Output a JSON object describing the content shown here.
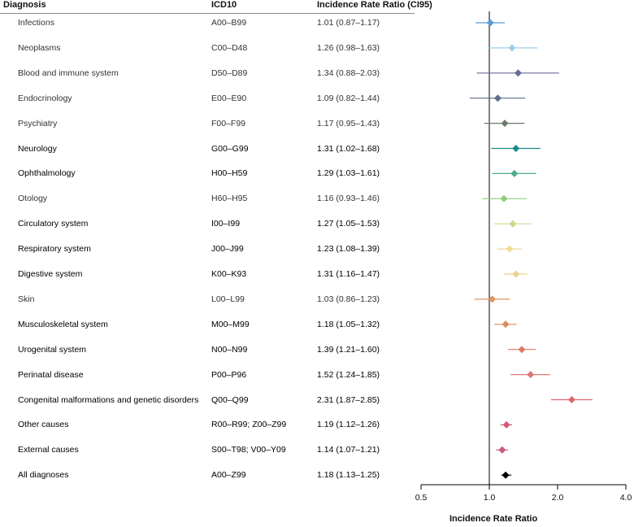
{
  "headers": {
    "diagnosis": "Diagnosis",
    "icd10": "ICD10",
    "irr": "Incidence Rate Ratio (CI95)"
  },
  "rows": [
    {
      "diagnosis": "Infections",
      "icd10": "A00–B99",
      "irr_text": "1.01 (0.87–1.17)",
      "significant": false
    },
    {
      "diagnosis": "Neoplasms",
      "icd10": "C00–D48",
      "irr_text": "1.26 (0.98–1.63)",
      "significant": false
    },
    {
      "diagnosis": "Blood and immune system",
      "icd10": "D50–D89",
      "irr_text": "1.34 (0.88–2.03)",
      "significant": false
    },
    {
      "diagnosis": "Endocrinology",
      "icd10": "E00–E90",
      "irr_text": "1.09 (0.82–1.44)",
      "significant": false
    },
    {
      "diagnosis": "Psychiatry",
      "icd10": "F00–F99",
      "irr_text": "1.17 (0.95–1.43)",
      "significant": false
    },
    {
      "diagnosis": "Neurology",
      "icd10": "G00–G99",
      "irr_text": "1.31 (1.02–1.68)",
      "significant": true
    },
    {
      "diagnosis": "Ophthalmology",
      "icd10": "H00–H59",
      "irr_text": "1.29 (1.03–1.61)",
      "significant": true
    },
    {
      "diagnosis": "Otology",
      "icd10": "H60–H95",
      "irr_text": "1.16 (0.93–1.46)",
      "significant": false
    },
    {
      "diagnosis": "Circulatory system",
      "icd10": "I00–I99",
      "irr_text": "1.27 (1.05–1.53)",
      "significant": true
    },
    {
      "diagnosis": "Respiratory system",
      "icd10": "J00–J99",
      "irr_text": "1.23 (1.08–1.39)",
      "significant": true
    },
    {
      "diagnosis": "Digestive system",
      "icd10": "K00–K93",
      "irr_text": "1.31 (1.16–1.47)",
      "significant": true
    },
    {
      "diagnosis": "Skin",
      "icd10": "L00–L99",
      "irr_text": "1.03 (0.86–1.23)",
      "significant": false
    },
    {
      "diagnosis": "Musculoskeletal system",
      "icd10": "M00–M99",
      "irr_text": "1.18 (1.05–1.32)",
      "significant": true
    },
    {
      "diagnosis": "Urogenital system",
      "icd10": "N00–N99",
      "irr_text": "1.39 (1.21–1.60)",
      "significant": true
    },
    {
      "diagnosis": "Perinatal disease",
      "icd10": "P00–P96",
      "irr_text": "1.52 (1.24–1.85)",
      "significant": true
    },
    {
      "diagnosis": "Congenital malformations and genetic disorders",
      "icd10": "Q00–Q99",
      "irr_text": "2.31 (1.87–2.85)",
      "significant": true
    },
    {
      "diagnosis": "Other causes",
      "icd10": "R00–R99;  Z00–Z99",
      "irr_text": "1.19 (1.12–1.26)",
      "significant": true
    },
    {
      "diagnosis": "External causes",
      "icd10": "S00–T98;  V00–Y09",
      "irr_text": "1.14 (1.07–1.21)",
      "significant": true
    },
    {
      "diagnosis": "All diagnoses",
      "icd10": "A00–Z99",
      "irr_text": "1.18 (1.13–1.25)",
      "significant": true
    }
  ],
  "chart_data": {
    "type": "forest",
    "xlabel": "Incidence Rate Ratio",
    "x_scale": "log",
    "xlim": [
      0.5,
      4.0
    ],
    "xticks": [
      0.5,
      1.0,
      2.0,
      4.0
    ],
    "xtick_labels": [
      "0.5",
      "1.0",
      "2.0",
      "4.0"
    ],
    "reference_line": 1.0,
    "points": [
      {
        "label": "Infections",
        "est": 1.01,
        "lo": 0.87,
        "hi": 1.17,
        "color": "#5b9bd5"
      },
      {
        "label": "Neoplasms",
        "est": 1.26,
        "lo": 0.98,
        "hi": 1.63,
        "color": "#9fcfe8"
      },
      {
        "label": "Blood and immune system",
        "est": 1.34,
        "lo": 0.88,
        "hi": 2.03,
        "color": "#6a6a9a"
      },
      {
        "label": "Endocrinology",
        "est": 1.09,
        "lo": 0.82,
        "hi": 1.44,
        "color": "#5e6e8a"
      },
      {
        "label": "Psychiatry",
        "est": 1.17,
        "lo": 0.95,
        "hi": 1.43,
        "color": "#6b7b6e"
      },
      {
        "label": "Neurology",
        "est": 1.31,
        "lo": 1.02,
        "hi": 1.68,
        "color": "#1f8a8a"
      },
      {
        "label": "Ophthalmology",
        "est": 1.29,
        "lo": 1.03,
        "hi": 1.61,
        "color": "#4aae8c"
      },
      {
        "label": "Otology",
        "est": 1.16,
        "lo": 0.93,
        "hi": 1.46,
        "color": "#8fcf7a"
      },
      {
        "label": "Circulatory system",
        "est": 1.27,
        "lo": 1.05,
        "hi": 1.53,
        "color": "#c8dc8c"
      },
      {
        "label": "Respiratory system",
        "est": 1.23,
        "lo": 1.08,
        "hi": 1.39,
        "color": "#ecdc96"
      },
      {
        "label": "Digestive system",
        "est": 1.31,
        "lo": 1.16,
        "hi": 1.47,
        "color": "#ecd28c"
      },
      {
        "label": "Skin",
        "est": 1.03,
        "lo": 0.86,
        "hi": 1.23,
        "color": "#dc9660"
      },
      {
        "label": "Musculoskeletal system",
        "est": 1.18,
        "lo": 1.05,
        "hi": 1.32,
        "color": "#dc8c5e"
      },
      {
        "label": "Urogenital system",
        "est": 1.39,
        "lo": 1.21,
        "hi": 1.6,
        "color": "#e07862"
      },
      {
        "label": "Perinatal disease",
        "est": 1.52,
        "lo": 1.24,
        "hi": 1.85,
        "color": "#e07878"
      },
      {
        "label": "Congenital malformations and genetic disorders",
        "est": 2.31,
        "lo": 1.87,
        "hi": 2.85,
        "color": "#dc6470"
      },
      {
        "label": "Other causes",
        "est": 1.19,
        "lo": 1.12,
        "hi": 1.26,
        "color": "#d25a78"
      },
      {
        "label": "External causes",
        "est": 1.14,
        "lo": 1.07,
        "hi": 1.21,
        "color": "#c85a82"
      },
      {
        "label": "All diagnoses",
        "est": 1.18,
        "lo": 1.13,
        "hi": 1.25,
        "color": "#000000"
      }
    ]
  }
}
